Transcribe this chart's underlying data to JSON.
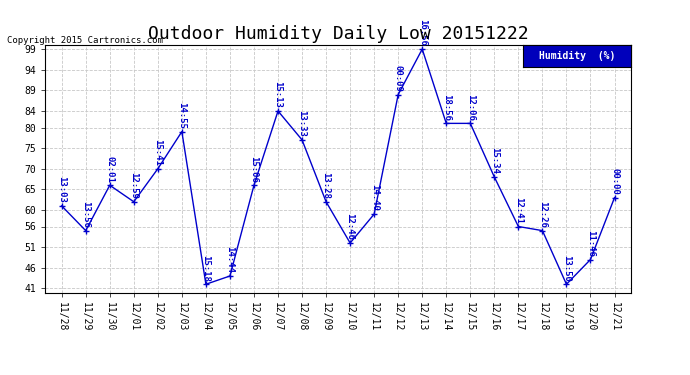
{
  "title": "Outdoor Humidity Daily Low 20151222",
  "copyright": "Copyright 2015 Cartronics.com",
  "legend_label": "Humidity  (%)",
  "x_labels": [
    "11/28",
    "11/29",
    "11/30",
    "12/01",
    "12/02",
    "12/03",
    "12/04",
    "12/05",
    "12/06",
    "12/07",
    "12/08",
    "12/09",
    "12/10",
    "12/11",
    "12/12",
    "12/13",
    "12/14",
    "12/15",
    "12/16",
    "12/17",
    "12/18",
    "12/19",
    "12/20",
    "12/21"
  ],
  "points": [
    [
      0,
      61,
      "13:03"
    ],
    [
      1,
      55,
      "13:56"
    ],
    [
      2,
      66,
      "02:01"
    ],
    [
      3,
      62,
      "12:59"
    ],
    [
      4,
      70,
      "15:41"
    ],
    [
      5,
      79,
      "14:55"
    ],
    [
      6,
      42,
      "15:18"
    ],
    [
      7,
      44,
      "14:44"
    ],
    [
      8,
      66,
      "15:06"
    ],
    [
      9,
      84,
      "15:13"
    ],
    [
      10,
      77,
      "13:33"
    ],
    [
      11,
      62,
      "13:28"
    ],
    [
      12,
      52,
      "12:46"
    ],
    [
      13,
      59,
      "14:40"
    ],
    [
      14,
      88,
      "00:09"
    ],
    [
      15,
      99,
      "16:56"
    ],
    [
      16,
      81,
      "18:56"
    ],
    [
      17,
      81,
      "12:06"
    ],
    [
      18,
      68,
      "15:34"
    ],
    [
      19,
      56,
      "12:41"
    ],
    [
      20,
      55,
      "12:26"
    ],
    [
      21,
      42,
      "13:50"
    ],
    [
      22,
      48,
      "11:46"
    ],
    [
      23,
      63,
      "00:00"
    ]
  ],
  "line_color": "#0000cc",
  "bg_color": "#ffffff",
  "grid_color": "#c8c8c8",
  "ylim_min": 40,
  "ylim_max": 100,
  "yticks": [
    41,
    46,
    51,
    56,
    60,
    65,
    70,
    75,
    80,
    84,
    89,
    94,
    99
  ],
  "title_fontsize": 13,
  "tick_fontsize": 7,
  "annot_fontsize": 6.5,
  "copyright_fontsize": 6.5,
  "legend_fontsize": 7,
  "legend_bg": "#0000bb",
  "legend_text_color": "#ffffff"
}
